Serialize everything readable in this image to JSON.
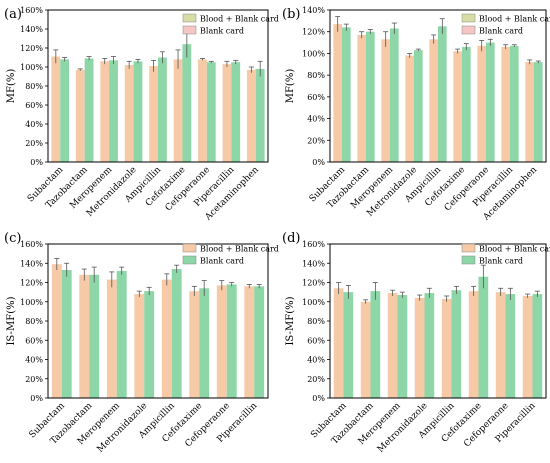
{
  "colors": {
    "peach": "#f6caa7",
    "green": "#8dd6a8",
    "legend_olive": "#d7dda4",
    "legend_pink": "#f4c6c4",
    "error": "#555555",
    "axis": "#000000"
  },
  "chart_data": [
    {
      "type": "bar",
      "panel_label": "(a)",
      "ylabel": "MF(%)",
      "ylim": [
        0,
        160
      ],
      "yticks": [
        "0%",
        "20%",
        "40%",
        "60%",
        "80%",
        "100%",
        "120%",
        "140%",
        "160%"
      ],
      "categories": [
        "Subactam",
        "Tazobactam",
        "Meropenem",
        "Metronidazole",
        "Ampicillin",
        "Cefotaxime",
        "Cefoperaone",
        "Piperacillin",
        "Acetaminophen"
      ],
      "legend": [
        "Blood + Blank card",
        "Blank card"
      ],
      "legend_colors": [
        "legend_olive",
        "legend_pink"
      ],
      "legend_position": "top-right",
      "series": [
        {
          "name": "Blood + Blank card",
          "color": "peach",
          "values": [
            111,
            97,
            106,
            102,
            101,
            108,
            108,
            103,
            97
          ],
          "errors": [
            7,
            1,
            3,
            4,
            6,
            10,
            1,
            3,
            3
          ]
        },
        {
          "name": "Blank card",
          "color": "green",
          "values": [
            108,
            109,
            107,
            106,
            110,
            124,
            105,
            105,
            98
          ],
          "errors": [
            2,
            2,
            4,
            2,
            6,
            14,
            1,
            2,
            8
          ]
        }
      ]
    },
    {
      "type": "bar",
      "panel_label": "(b)",
      "ylabel": "MF(%)",
      "ylim": [
        0,
        140
      ],
      "yticks": [
        "0%",
        "20%",
        "40%",
        "60%",
        "80%",
        "100%",
        "120%",
        "140%"
      ],
      "categories": [
        "Subactam",
        "Tazobactam",
        "Meropenem",
        "Metronidazole",
        "Ampicillin",
        "Cefotaxime",
        "Cefoperaone",
        "Piperacillin",
        "Acetaminophen"
      ],
      "legend": [
        "Blood + Blank card",
        "Blank card"
      ],
      "legend_colors": [
        "legend_olive",
        "legend_pink"
      ],
      "legend_position": "top-right",
      "series": [
        {
          "name": "Blood + Blank card",
          "color": "peach",
          "values": [
            127,
            117,
            113,
            98,
            113,
            102,
            107,
            106,
            92
          ],
          "errors": [
            7,
            3,
            7,
            2,
            4,
            2,
            5,
            2,
            2
          ]
        },
        {
          "name": "Blank card",
          "color": "green",
          "values": [
            124,
            120,
            123,
            103,
            125,
            106,
            110,
            107,
            92
          ],
          "errors": [
            3,
            2,
            5,
            1,
            7,
            3,
            3,
            1,
            1
          ]
        }
      ]
    },
    {
      "type": "bar",
      "panel_label": "(c)",
      "ylabel": "IS-MF(%)",
      "ylim": [
        0,
        160
      ],
      "yticks": [
        "0%",
        "20%",
        "40%",
        "60%",
        "80%",
        "100%",
        "120%",
        "140%",
        "160%"
      ],
      "categories": [
        "Subactam",
        "Tazobactam",
        "Meropenem",
        "Metronidazole",
        "Ampicillin",
        "Cefotaxime",
        "Cefoperaone",
        "Piperacillin"
      ],
      "legend": [
        "Blood + Blank card",
        "Blank card"
      ],
      "legend_colors": [
        "peach",
        "green"
      ],
      "legend_position": "top-right",
      "series": [
        {
          "name": "Blood + Blank card",
          "color": "peach",
          "values": [
            139,
            128,
            123,
            108,
            123,
            111,
            117,
            116
          ],
          "errors": [
            6,
            6,
            8,
            3,
            6,
            5,
            5,
            2
          ]
        },
        {
          "name": "Blank card",
          "color": "green",
          "values": [
            133,
            128,
            132,
            111,
            134,
            114,
            118,
            116
          ],
          "errors": [
            7,
            8,
            4,
            4,
            4,
            8,
            2,
            2
          ]
        }
      ]
    },
    {
      "type": "bar",
      "panel_label": "(d)",
      "ylabel": "IS-MF(%)",
      "ylim": [
        0,
        160
      ],
      "yticks": [
        "0%",
        "20%",
        "40%",
        "60%",
        "80%",
        "100%",
        "120%",
        "140%",
        "160%"
      ],
      "categories": [
        "Subactam",
        "Tazobactam",
        "Meropenem",
        "Metronidazole",
        "Ampicillin",
        "Cefotaxime",
        "Cefoperaone",
        "Piperacillin"
      ],
      "legend": [
        "Blood + Blank card",
        "Blank card"
      ],
      "legend_colors": [
        "peach",
        "green"
      ],
      "legend_position": "top-right",
      "series": [
        {
          "name": "Blood + Blank card",
          "color": "peach",
          "values": [
            114,
            100,
            109,
            104,
            103,
            111,
            110,
            106
          ],
          "errors": [
            6,
            2,
            3,
            3,
            3,
            5,
            4,
            2
          ]
        },
        {
          "name": "Blank card",
          "color": "green",
          "values": [
            110,
            111,
            107,
            109,
            112,
            126,
            108,
            108
          ],
          "errors": [
            7,
            9,
            3,
            5,
            4,
            12,
            6,
            3
          ]
        }
      ]
    }
  ]
}
